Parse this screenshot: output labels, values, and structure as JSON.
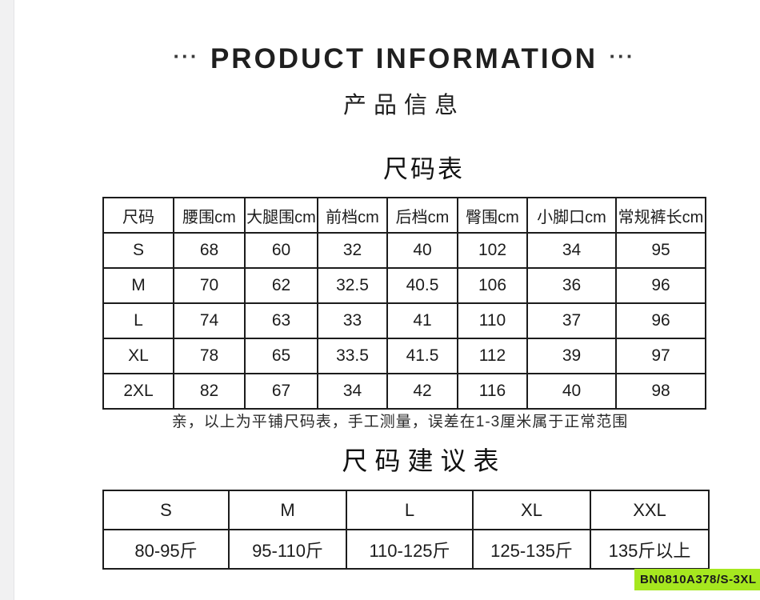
{
  "header": {
    "dots": "···",
    "title_en": "PRODUCT INFORMATION",
    "title_cn": "产品信息"
  },
  "size_chart": {
    "heading": "尺码表",
    "columns": [
      "尺码",
      "腰围cm",
      "大腿围cm",
      "前档cm",
      "后档cm",
      "臀围cm",
      "小脚口cm",
      "常规裤长cm"
    ],
    "rows": [
      [
        "S",
        "68",
        "60",
        "32",
        "40",
        "102",
        "34",
        "95"
      ],
      [
        "M",
        "70",
        "62",
        "32.5",
        "40.5",
        "106",
        "36",
        "96"
      ],
      [
        "L",
        "74",
        "63",
        "33",
        "41",
        "110",
        "37",
        "96"
      ],
      [
        "XL",
        "78",
        "65",
        "33.5",
        "41.5",
        "112",
        "39",
        "97"
      ],
      [
        "2XL",
        "82",
        "67",
        "34",
        "42",
        "116",
        "40",
        "98"
      ]
    ],
    "note": "亲，以上为平铺尺码表，手工测量，误差在1-3厘米属于正常范围"
  },
  "size_suggestion": {
    "heading": "尺码建议表",
    "columns": [
      "S",
      "M",
      "L",
      "XL",
      "XXL"
    ],
    "rows": [
      [
        "80-95斤",
        "95-110斤",
        "110-125斤",
        "125-135斤",
        "135斤以上"
      ]
    ]
  },
  "badge": {
    "text": "BN0810A378/S-3XL",
    "color": "#a6e71f"
  }
}
